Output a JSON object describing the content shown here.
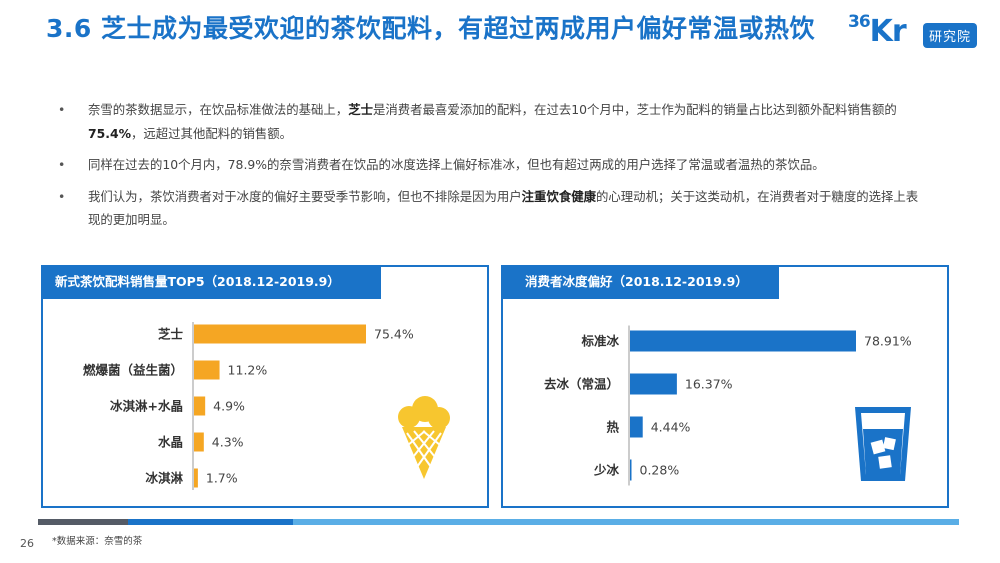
{
  "title": "3.6 芝士成为最受欢迎的茶饮配料，有超过两成用户偏好常温或热饮",
  "logo": {
    "brand": "36Kr",
    "badge": "研究院"
  },
  "bullets": [
    {
      "dot": "•",
      "parts": [
        {
          "text": "奈雪的茶数据显示，在饮品标准做法的基础上，",
          "bold": false
        },
        {
          "text": "芝士",
          "bold": true
        },
        {
          "text": "是消费者最喜爱添加的配料，在过去10个月中，芝士作为配料的销量占比达到额外配料销售额的",
          "bold": false
        },
        {
          "text": "75.4%",
          "bold": true
        },
        {
          "text": "，远超过其他配料的销售额。",
          "bold": false
        }
      ]
    },
    {
      "dot": "•",
      "parts": [
        {
          "text": "同样在过去的10个月内，78.9%的奈雪消费者在饮品的冰度选择上偏好标准冰，但也有超过两成的用户选择了常温或者温热的茶饮品。",
          "bold": false
        }
      ]
    },
    {
      "dot": "•",
      "parts": [
        {
          "text": "我们认为，茶饮消费者对于冰度的偏好主要受季节影响，但也不排除是因为用户",
          "bold": false
        },
        {
          "text": "注重饮食健康",
          "bold": true
        },
        {
          "text": "的心理动机；关于这类动机，在消费者对于糖度的选择上表现的更加明显。",
          "bold": false
        }
      ]
    }
  ],
  "chart_data": [
    {
      "type": "bar",
      "orientation": "horizontal",
      "title": "新式茶饮配料销售量TOP5（2018.12-2019.9）",
      "categories": [
        "芝士",
        "燃爆菌（益生菌）",
        "冰淇淋+水晶",
        "水晶",
        "冰淇淋"
      ],
      "values": [
        75.4,
        11.2,
        4.9,
        4.3,
        1.7
      ],
      "value_labels": [
        "75.4%",
        "11.2%",
        "4.9%",
        "4.3%",
        "1.7%"
      ],
      "unit": "%",
      "color": "#f5a623",
      "icon": "ice-cream-cone-icon"
    },
    {
      "type": "bar",
      "orientation": "horizontal",
      "title": "消费者冰度偏好（2018.12-2019.9）",
      "categories": [
        "标准冰",
        "去冰（常温）",
        "热",
        "少冰"
      ],
      "values": [
        78.91,
        16.37,
        4.44,
        0.28
      ],
      "value_labels": [
        "78.91%",
        "16.37%",
        "4.44%",
        "0.28%"
      ],
      "unit": "%",
      "color": "#1a73c8",
      "icon": "iced-drink-glass-icon"
    }
  ],
  "footer": {
    "page_number": "26",
    "source": "*数据来源：奈雪的茶"
  },
  "colors": {
    "primary": "#1a73c8",
    "accent": "#f5a623",
    "footer_dark": "#555b66",
    "footer_light": "#5aaee6"
  }
}
